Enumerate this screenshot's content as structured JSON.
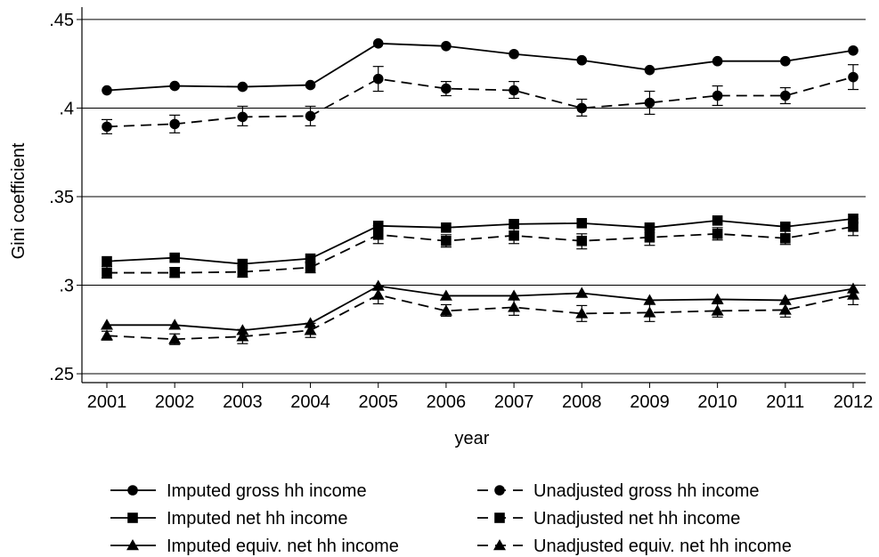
{
  "chart_data": {
    "type": "line",
    "xlabel": "year",
    "ylabel": "Gini coefficient",
    "x": [
      2001,
      2002,
      2003,
      2004,
      2005,
      2006,
      2007,
      2008,
      2009,
      2010,
      2011,
      2012
    ],
    "x_tick_labels": [
      "2001",
      "2002",
      "2003",
      "2004",
      "2005",
      "2006",
      "2007",
      "2008",
      "2009",
      "2010",
      "2011",
      "2012"
    ],
    "ylim": [
      0.245,
      0.457
    ],
    "y_ticks": [
      0.25,
      0.3,
      0.35,
      0.4,
      0.45
    ],
    "y_tick_labels": [
      ".25",
      ".3",
      ".35",
      ".4",
      ".45"
    ],
    "grid": true,
    "legend_position": "bottom",
    "series": [
      {
        "name": "Imputed gross hh income",
        "marker": "circle",
        "dash": "solid",
        "values": [
          0.41,
          0.4125,
          0.412,
          0.413,
          0.4365,
          0.435,
          0.4305,
          0.427,
          0.4215,
          0.4265,
          0.4265,
          0.4325
        ]
      },
      {
        "name": "Unadjusted gross hh income",
        "marker": "circle",
        "dash": "dashed",
        "values": [
          0.3895,
          0.391,
          0.395,
          0.3955,
          0.4165,
          0.411,
          0.41,
          0.4,
          0.403,
          0.407,
          0.407,
          0.4175
        ],
        "err_low": [
          0.3855,
          0.386,
          0.39,
          0.39,
          0.4095,
          0.407,
          0.4055,
          0.3955,
          0.3965,
          0.4015,
          0.4025,
          0.4105
        ],
        "err_high": [
          0.3935,
          0.396,
          0.401,
          0.401,
          0.4235,
          0.415,
          0.415,
          0.405,
          0.4095,
          0.4125,
          0.4115,
          0.4245
        ]
      },
      {
        "name": "Imputed net hh income",
        "marker": "square",
        "dash": "solid",
        "values": [
          0.3135,
          0.3155,
          0.312,
          0.315,
          0.3335,
          0.3325,
          0.3345,
          0.335,
          0.3325,
          0.3365,
          0.333,
          0.3375
        ]
      },
      {
        "name": "Unadjusted net hh income",
        "marker": "square",
        "dash": "dashed",
        "values": [
          0.307,
          0.307,
          0.3075,
          0.31,
          0.3285,
          0.325,
          0.328,
          0.325,
          0.327,
          0.329,
          0.3265,
          0.333
        ],
        "err_low": [
          0.304,
          0.3045,
          0.3045,
          0.307,
          0.3235,
          0.3215,
          0.3235,
          0.3205,
          0.3225,
          0.3255,
          0.323,
          0.328
        ],
        "err_high": [
          0.3105,
          0.31,
          0.311,
          0.313,
          0.3335,
          0.3285,
          0.3325,
          0.329,
          0.3315,
          0.3325,
          0.3305,
          0.3375
        ]
      },
      {
        "name": "Imputed equiv. net hh income",
        "marker": "triangle",
        "dash": "solid",
        "values": [
          0.2775,
          0.2775,
          0.2745,
          0.2785,
          0.2995,
          0.294,
          0.294,
          0.2955,
          0.2915,
          0.292,
          0.2915,
          0.298
        ]
      },
      {
        "name": "Unadjusted equiv. net hh income",
        "marker": "triangle",
        "dash": "dashed",
        "values": [
          0.2715,
          0.2695,
          0.271,
          0.2745,
          0.2945,
          0.2855,
          0.2875,
          0.284,
          0.2845,
          0.2855,
          0.286,
          0.2945
        ],
        "err_low": [
          0.269,
          0.2665,
          0.267,
          0.2705,
          0.2895,
          0.2825,
          0.283,
          0.2795,
          0.2795,
          0.282,
          0.282,
          0.289
        ],
        "err_high": [
          0.274,
          0.2725,
          0.275,
          0.2785,
          0.2995,
          0.289,
          0.292,
          0.2885,
          0.2895,
          0.2895,
          0.2895,
          0.3
        ]
      }
    ]
  }
}
